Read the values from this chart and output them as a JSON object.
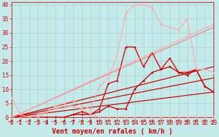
{
  "xlabel": "Vent moyen/en rafales ( km/h )",
  "xlim": [
    0,
    23
  ],
  "ylim": [
    0,
    41
  ],
  "yticks": [
    0,
    5,
    10,
    15,
    20,
    25,
    30,
    35,
    40
  ],
  "xticks": [
    0,
    1,
    2,
    3,
    4,
    5,
    6,
    7,
    8,
    9,
    10,
    11,
    12,
    13,
    14,
    15,
    16,
    17,
    18,
    19,
    20,
    21,
    22,
    23
  ],
  "bg_color": "#c5eaea",
  "grid_color": "#aad4d4",
  "lines": [
    {
      "x": [
        0,
        23
      ],
      "y": [
        0,
        9
      ],
      "color": "#cc0000",
      "lw": 0.9,
      "marker": null,
      "ms": 0
    },
    {
      "x": [
        0,
        23
      ],
      "y": [
        0,
        14
      ],
      "color": "#cc0000",
      "lw": 0.9,
      "marker": null,
      "ms": 0
    },
    {
      "x": [
        0,
        23
      ],
      "y": [
        0,
        18
      ],
      "color": "#cc0000",
      "lw": 0.9,
      "marker": null,
      "ms": 0
    },
    {
      "x": [
        0,
        23
      ],
      "y": [
        0,
        32
      ],
      "color": "#ee8888",
      "lw": 0.9,
      "marker": null,
      "ms": 0
    },
    {
      "x": [
        0,
        1,
        2,
        3,
        4,
        5,
        6,
        7,
        8,
        9,
        10,
        11,
        12,
        13,
        14,
        15,
        16,
        17,
        18,
        19,
        20,
        21,
        22,
        23
      ],
      "y": [
        0,
        0,
        0,
        0,
        0,
        0,
        0,
        1,
        1,
        1,
        2,
        4,
        3,
        3,
        10,
        13,
        16,
        17,
        18,
        16,
        15,
        17,
        11,
        9
      ],
      "color": "#cc0000",
      "lw": 1.0,
      "marker": "D",
      "ms": 1.8
    },
    {
      "x": [
        0,
        1,
        2,
        3,
        4,
        5,
        6,
        7,
        8,
        9,
        10,
        11,
        12,
        13,
        14,
        15,
        16,
        17,
        18,
        19,
        20,
        21,
        22,
        23
      ],
      "y": [
        0,
        0,
        0,
        0,
        0,
        0,
        0,
        1,
        2,
        1,
        3,
        12,
        13,
        25,
        25,
        18,
        23,
        17,
        21,
        16,
        16,
        17,
        11,
        9
      ],
      "color": "#dd0000",
      "lw": 1.0,
      "marker": "D",
      "ms": 1.8
    },
    {
      "x": [
        0,
        1,
        2,
        3,
        4,
        5,
        6,
        7,
        8,
        9,
        10,
        11,
        12,
        13,
        14,
        15,
        16,
        17,
        18,
        19,
        20,
        21,
        22,
        23
      ],
      "y": [
        7,
        1,
        0,
        0,
        2,
        3,
        4,
        4,
        3,
        1,
        0,
        0,
        0,
        0,
        0,
        0,
        0,
        0,
        0,
        0,
        0,
        0,
        0,
        0
      ],
      "color": "#ffaaaa",
      "lw": 0.9,
      "marker": "D",
      "ms": 1.8
    },
    {
      "x": [
        0,
        1,
        2,
        3,
        4,
        5,
        6,
        7,
        8,
        9,
        10,
        11,
        12,
        13,
        14,
        15,
        16,
        17,
        18,
        19,
        20,
        21,
        22,
        23
      ],
      "y": [
        0,
        0,
        0,
        1,
        2,
        4,
        5,
        6,
        4,
        3,
        11,
        14,
        22,
        37,
        40,
        40,
        39,
        33,
        32,
        31,
        35,
        17,
        17,
        16
      ],
      "color": "#ffaaaa",
      "lw": 0.9,
      "marker": "D",
      "ms": 1.8
    },
    {
      "x": [
        0,
        23
      ],
      "y": [
        0,
        33
      ],
      "color": "#ffaaaa",
      "lw": 0.9,
      "marker": null,
      "ms": 0
    }
  ],
  "arrow_color": "#cc0000",
  "tick_color": "#cc0000",
  "xlabel_color": "#cc0000",
  "xlabel_fontsize": 7,
  "tick_fontsize": 6,
  "ylabel_fontsize": 6
}
